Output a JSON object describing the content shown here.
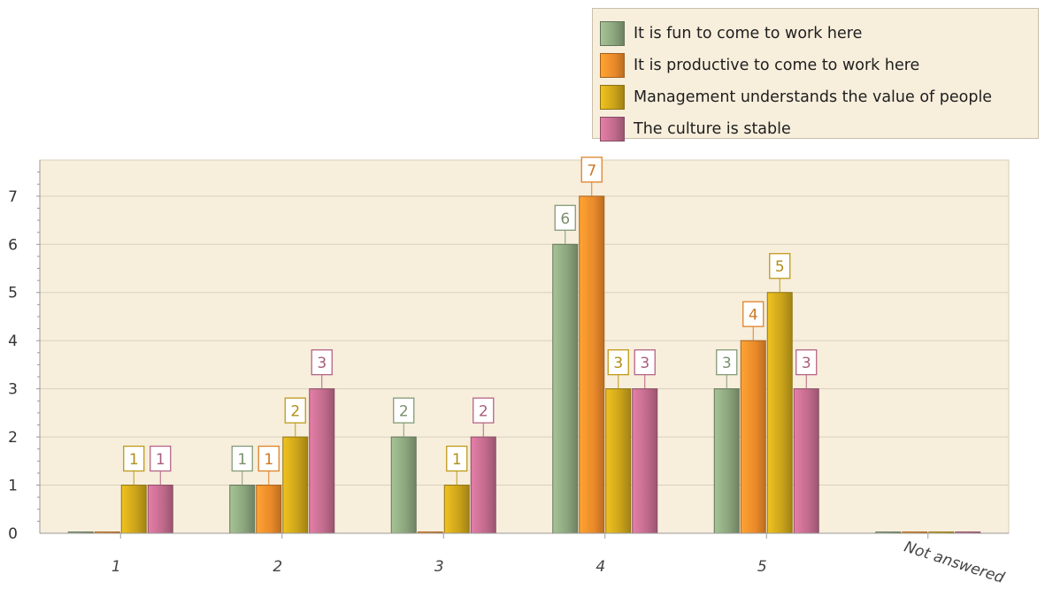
{
  "chart_data": {
    "type": "bar",
    "categories": [
      "1",
      "2",
      "3",
      "4",
      "5",
      "Not answered"
    ],
    "series": [
      {
        "name": "It is fun to come to work here",
        "values": [
          0,
          1,
          2,
          6,
          3,
          0
        ],
        "color": "#8aa37c"
      },
      {
        "name": "It is productive to come to work here",
        "values": [
          0,
          1,
          0,
          7,
          4,
          0
        ],
        "color": "#e9892a"
      },
      {
        "name": "Management understands the value of people",
        "values": [
          1,
          2,
          1,
          3,
          5,
          0
        ],
        "color": "#c9a21a"
      },
      {
        "name": "The culture is stable",
        "values": [
          1,
          3,
          2,
          3,
          3,
          0
        ],
        "color": "#c06a8c"
      }
    ],
    "yticks": [
      "0",
      "1",
      "2",
      "3",
      "4",
      "5",
      "6",
      "7"
    ],
    "ylim": [
      0,
      7.75
    ],
    "grid": true,
    "legend_position": "top-right",
    "plot_background": "#f7eedc"
  }
}
